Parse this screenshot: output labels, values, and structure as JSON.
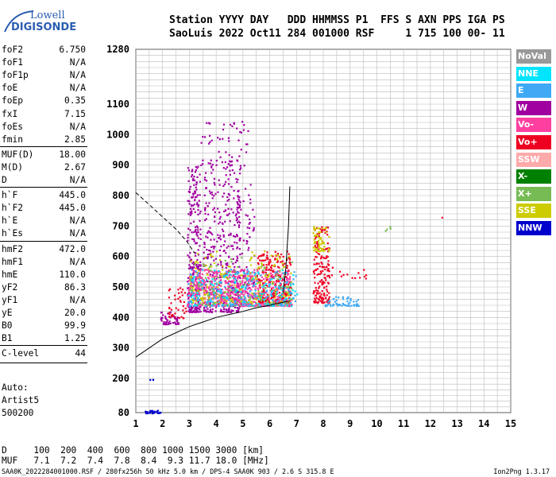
{
  "logo": {
    "line1": "Lowell",
    "line2": "DIGISONDE"
  },
  "header": {
    "line1": "Station YYYY DAY   DDD HHMMSS P1  FFS S AXN PPS IGA PS",
    "line2": "SaoLuis 2022 Oct11 284 001000 RSF     1 715 100 00- 11"
  },
  "params": [
    {
      "name": "foF2",
      "value": "6.750"
    },
    {
      "name": "foF1",
      "value": "N/A"
    },
    {
      "name": "foF1p",
      "value": "N/A"
    },
    {
      "name": "foE",
      "value": "N/A"
    },
    {
      "name": "foEp",
      "value": "0.35"
    },
    {
      "name": "fxI",
      "value": "7.15"
    },
    {
      "name": "foEs",
      "value": "N/A"
    },
    {
      "name": "fmin",
      "value": "2.85"
    },
    {
      "name": "MUF(D)",
      "value": "18.00"
    },
    {
      "name": "M(D)",
      "value": "2.67"
    },
    {
      "name": "D",
      "value": "N/A"
    },
    {
      "name": "h`F",
      "value": "445.0"
    },
    {
      "name": "h`F2",
      "value": "445.0"
    },
    {
      "name": "h`E",
      "value": "N/A"
    },
    {
      "name": "h`Es",
      "value": "N/A"
    },
    {
      "name": "hmF2",
      "value": "472.0"
    },
    {
      "name": "hmF1",
      "value": "N/A"
    },
    {
      "name": "hmE",
      "value": "110.0"
    },
    {
      "name": "yF2",
      "value": "86.3"
    },
    {
      "name": "yF1",
      "value": "N/A"
    },
    {
      "name": "yE",
      "value": "20.0"
    },
    {
      "name": "B0",
      "value": "99.9"
    },
    {
      "name": "B1",
      "value": "1.25"
    },
    {
      "name": "C-level",
      "value": "44"
    }
  ],
  "auto": {
    "label": "Auto:",
    "system": "Artist5",
    "version": "500200"
  },
  "legend": [
    {
      "label": "NoVal",
      "color": "#999999"
    },
    {
      "label": "NNE",
      "color": "#00e5ff"
    },
    {
      "label": "E",
      "color": "#3fa9f5"
    },
    {
      "label": "W",
      "color": "#a000a0"
    },
    {
      "label": "Vo-",
      "color": "#ff3fa0"
    },
    {
      "label": "Vo+",
      "color": "#ee0022"
    },
    {
      "label": "SSW",
      "color": "#ffaaaa"
    },
    {
      "label": "X-",
      "color": "#008000"
    },
    {
      "label": "X+",
      "color": "#77bb55"
    },
    {
      "label": "SSE",
      "color": "#cccc00"
    },
    {
      "label": "NNW",
      "color": "#0000cc"
    }
  ],
  "footer": {
    "line1": "D     100  200  400  600  800 1000 1500 3000 [km]",
    "line2": "MUF   7.1  7.2  7.4  7.8  8.4  9.3 11.7 18.0 [MHz]",
    "line3": "SAA0K_2022284001000.RSF / 280fx256h 50 kHz 5.0 km / DPS-4 SAA0K 903 / 2.6 S 315.8 E",
    "version": "Ion2Png 1.3.17"
  },
  "chart_data": {
    "type": "scatter",
    "xlim": [
      1,
      15
    ],
    "ylim": [
      80,
      1280
    ],
    "x_ticks": [
      1,
      2,
      3,
      4,
      5,
      6,
      7,
      8,
      9,
      10,
      11,
      12,
      13,
      14,
      15
    ],
    "y_tick_labels": [
      80,
      200,
      300,
      400,
      500,
      600,
      700,
      800,
      900,
      1000,
      1100,
      1280
    ],
    "grid": true,
    "clusters": [
      {
        "x0": 2.9,
        "x1": 3.4,
        "y0": 420,
        "y1": 900,
        "n": 260,
        "cat": "W"
      },
      {
        "x0": 3.5,
        "x1": 4.9,
        "y0": 420,
        "y1": 920,
        "n": 380,
        "cat": "W"
      },
      {
        "x0": 4.5,
        "x1": 5.4,
        "y0": 440,
        "y1": 850,
        "n": 120,
        "cat": "W"
      },
      {
        "x0": 2.9,
        "x1": 6.8,
        "y0": 440,
        "y1": 560,
        "n": 700,
        "cat": "Vo-"
      },
      {
        "x0": 5.5,
        "x1": 6.8,
        "y0": 450,
        "y1": 620,
        "n": 220,
        "cat": "Vo+"
      },
      {
        "x0": 7.6,
        "x1": 8.2,
        "y0": 450,
        "y1": 700,
        "n": 180,
        "cat": "Vo+"
      },
      {
        "x0": 3.0,
        "x1": 6.8,
        "y0": 450,
        "y1": 620,
        "n": 200,
        "cat": "SSE"
      },
      {
        "x0": 3.0,
        "x1": 6.8,
        "y0": 440,
        "y1": 600,
        "n": 140,
        "cat": "X+"
      },
      {
        "x0": 2.9,
        "x1": 7.0,
        "y0": 440,
        "y1": 560,
        "n": 160,
        "cat": "NNE"
      },
      {
        "x0": 2.9,
        "x1": 7.0,
        "y0": 440,
        "y1": 560,
        "n": 140,
        "cat": "E"
      },
      {
        "x0": 1.9,
        "x1": 2.6,
        "y0": 380,
        "y1": 420,
        "n": 50,
        "cat": "W"
      },
      {
        "x0": 2.2,
        "x1": 2.9,
        "y0": 400,
        "y1": 500,
        "n": 40,
        "cat": "Vo+"
      },
      {
        "x0": 3.4,
        "x1": 5.2,
        "y0": 900,
        "y1": 1060,
        "n": 60,
        "cat": "W"
      },
      {
        "x0": 8.0,
        "x1": 9.3,
        "y0": 440,
        "y1": 470,
        "n": 60,
        "cat": "E"
      },
      {
        "x0": 8.2,
        "x1": 9.6,
        "y0": 530,
        "y1": 570,
        "n": 15,
        "cat": "Vo+"
      },
      {
        "x0": 7.6,
        "x1": 8.2,
        "y0": 620,
        "y1": 700,
        "n": 60,
        "cat": "SSE"
      },
      {
        "x0": 1.3,
        "x1": 1.9,
        "y0": 80,
        "y1": 90,
        "n": 30,
        "cat": "NNW"
      },
      {
        "x0": 1.5,
        "x1": 1.7,
        "y0": 195,
        "y1": 200,
        "n": 3,
        "cat": "NNW"
      },
      {
        "x0": 10.3,
        "x1": 10.6,
        "y0": 685,
        "y1": 700,
        "n": 4,
        "cat": "X+"
      },
      {
        "x0": 12.4,
        "x1": 12.5,
        "y0": 730,
        "y1": 735,
        "n": 1,
        "cat": "Vo+"
      }
    ],
    "profile_dashed": [
      [
        1.0,
        810
      ],
      [
        1.5,
        770
      ],
      [
        2.0,
        730
      ],
      [
        2.5,
        690
      ],
      [
        2.9,
        650
      ],
      [
        3.2,
        610
      ]
    ],
    "profile_line": [
      [
        1.0,
        270
      ],
      [
        1.5,
        300
      ],
      [
        2.0,
        330
      ],
      [
        2.5,
        350
      ],
      [
        3.0,
        370
      ],
      [
        3.5,
        385
      ],
      [
        4.0,
        400
      ],
      [
        4.5,
        410
      ],
      [
        5.0,
        420
      ],
      [
        5.5,
        432
      ],
      [
        6.0,
        440
      ],
      [
        6.5,
        450
      ],
      [
        6.75,
        455
      ]
    ],
    "vertical_trace": [
      [
        6.75,
        830
      ],
      [
        6.7,
        700
      ],
      [
        6.6,
        560
      ],
      [
        6.5,
        480
      ]
    ]
  }
}
